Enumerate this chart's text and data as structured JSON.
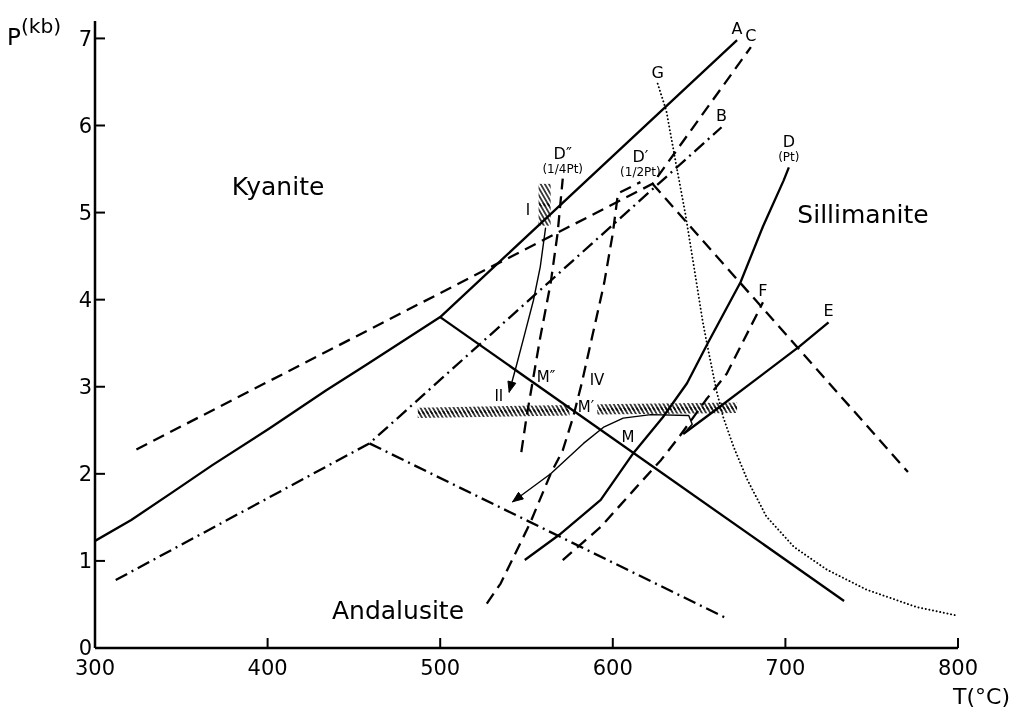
{
  "chart_data": {
    "type": "line",
    "xlabel": "T(°C)",
    "ylabel": "P$^{(kb)}$",
    "xlim": [
      300,
      800
    ],
    "xticks": [
      300,
      400,
      500,
      600,
      700,
      800
    ],
    "ylim": [
      0,
      7.2
    ],
    "yticks": [
      0,
      1,
      2,
      3,
      4,
      5,
      6,
      7
    ],
    "marker": "none",
    "series": [
      {
        "name": "A",
        "color": "#000000",
        "line_style": "solid",
        "x": [
          300,
          321,
          345,
          368,
          401,
          434,
          457,
          500,
          672
        ],
        "values": [
          1.23,
          1.47,
          1.79,
          2.1,
          2.52,
          2.96,
          3.25,
          3.8,
          6.98
        ]
      },
      {
        "color": "#000000",
        "line_style": "solid",
        "x": [
          500,
          734
        ],
        "values": [
          3.8,
          0.54
        ]
      },
      {
        "name": "B",
        "color": "#000000",
        "line_style": "dashdot",
        "x": [
          312,
          459,
          663
        ],
        "values": [
          0.78,
          2.35,
          5.98
        ]
      },
      {
        "color": "#000000",
        "line_style": "dashdot",
        "x": [
          459,
          666
        ],
        "values": [
          2.35,
          0.34
        ]
      },
      {
        "name": "C",
        "color": "#000000",
        "line_style": "dashed",
        "x": [
          324,
          623,
          680
        ],
        "values": [
          2.28,
          5.33,
          6.9
        ]
      },
      {
        "color": "#000000",
        "line_style": "dashed",
        "x": [
          623,
          771
        ],
        "values": [
          5.33,
          2.02
        ]
      },
      {
        "name": "D (Pt)",
        "color": "#000000",
        "line_style": "solid",
        "x": [
          549,
          569,
          593,
          612,
          629,
          643,
          655,
          674,
          687,
          699,
          702
        ],
        "values": [
          1.01,
          1.3,
          1.7,
          2.24,
          2.65,
          3.04,
          3.5,
          4.2,
          4.84,
          5.37,
          5.52
        ]
      },
      {
        "name": "D′ (1/2Pt)",
        "color": "#000000",
        "line_style": "dashed",
        "x": [
          527,
          535,
          552,
          564,
          571,
          577,
          582,
          588,
          595,
          600,
          603,
          609,
          616
        ],
        "values": [
          0.51,
          0.74,
          1.43,
          2.0,
          2.27,
          2.65,
          3.04,
          3.57,
          4.19,
          4.76,
          5.22,
          5.28,
          5.35
        ]
      },
      {
        "name": "D″ (1/4Pt)",
        "color": "#000000",
        "line_style": "dashed",
        "x": [
          547,
          550,
          554,
          558,
          564,
          568,
          571
        ],
        "values": [
          2.25,
          2.65,
          3.11,
          3.57,
          4.19,
          4.76,
          5.39
        ]
      },
      {
        "name": "E",
        "color": "#000000",
        "line_style": "solid",
        "x": [
          641,
          662,
          708,
          725
        ],
        "values": [
          2.46,
          2.77,
          3.46,
          3.74
        ]
      },
      {
        "name": "F",
        "color": "#000000",
        "line_style": "dashed",
        "x": [
          571,
          593,
          612,
          628,
          639,
          654,
          666,
          675,
          687
        ],
        "values": [
          1.01,
          1.39,
          1.81,
          2.16,
          2.44,
          2.85,
          3.15,
          3.5,
          3.97
        ]
      },
      {
        "name": "G",
        "color": "#000000",
        "line_style": "dotted",
        "x": [
          626,
          631,
          637,
          642,
          647,
          652,
          655,
          660,
          664,
          670,
          678,
          689,
          705,
          724,
          747,
          776,
          800
        ],
        "values": [
          6.48,
          6.17,
          5.52,
          4.99,
          4.38,
          3.76,
          3.45,
          2.96,
          2.65,
          2.31,
          1.93,
          1.51,
          1.16,
          0.9,
          0.67,
          0.47,
          0.37
        ]
      },
      {
        "color": "#000000",
        "x": [
          487,
          575
        ],
        "values": [
          2.7,
          2.73
        ],
        "lower": [
          2.64,
          2.67
        ],
        "upper": [
          2.76,
          2.79
        ]
      },
      {
        "color": "#000000",
        "x": [
          591,
          672
        ],
        "values": [
          2.74,
          2.76
        ],
        "lower": [
          2.68,
          2.7
        ],
        "upper": [
          2.8,
          2.82
        ]
      },
      {
        "color": "#000000",
        "x": [
          557,
          564
        ],
        "values": [
          5.09,
          5.09
        ],
        "lower": [
          4.85,
          4.85
        ],
        "upper": [
          5.33,
          5.33
        ]
      }
    ],
    "annotations": [
      "Kyanite",
      "Sillimanite",
      "Andalusite",
      "I",
      {
        "text": "II",
        "x": 540,
        "y": 2.78
      },
      "IV",
      "M″",
      "M′",
      "M"
    ]
  }
}
